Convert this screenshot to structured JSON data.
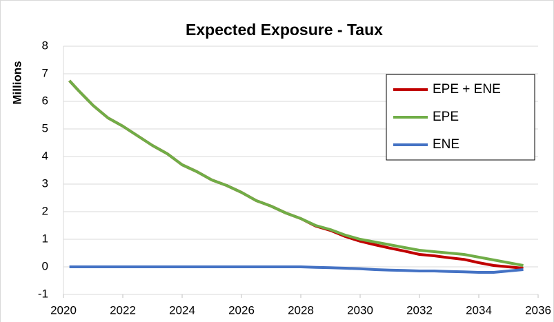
{
  "chart_data": {
    "type": "line",
    "title": "Expected Exposure - Taux",
    "y_label": "Millions",
    "x": [
      2020.2,
      2020.5,
      2021,
      2021.5,
      2022,
      2022.5,
      2023,
      2023.5,
      2024,
      2024.5,
      2025,
      2025.5,
      2026,
      2026.5,
      2027,
      2027.5,
      2028,
      2028.5,
      2029,
      2029.5,
      2030,
      2030.5,
      2031,
      2031.5,
      2032,
      2032.5,
      2033,
      2033.5,
      2034,
      2034.5,
      2035,
      2035.5
    ],
    "series": [
      {
        "name": "EPE + ENE",
        "color": "#c00000",
        "values": [
          6.75,
          6.4,
          5.85,
          5.4,
          5.1,
          4.75,
          4.4,
          4.1,
          3.7,
          3.45,
          3.15,
          2.95,
          2.7,
          2.4,
          2.2,
          1.95,
          1.75,
          1.48,
          1.32,
          1.1,
          0.93,
          0.8,
          0.68,
          0.57,
          0.45,
          0.4,
          0.33,
          0.27,
          0.15,
          0.05,
          0.0,
          -0.05
        ]
      },
      {
        "name": "EPE",
        "color": "#70ad47",
        "values": [
          6.75,
          6.4,
          5.85,
          5.4,
          5.1,
          4.75,
          4.4,
          4.1,
          3.7,
          3.45,
          3.15,
          2.95,
          2.7,
          2.4,
          2.2,
          1.95,
          1.75,
          1.5,
          1.35,
          1.15,
          1.0,
          0.9,
          0.8,
          0.7,
          0.6,
          0.55,
          0.5,
          0.45,
          0.35,
          0.25,
          0.15,
          0.05
        ]
      },
      {
        "name": "ENE",
        "color": "#4472c4",
        "values": [
          0,
          0,
          0,
          0,
          0,
          0,
          0,
          0,
          0,
          0,
          0,
          0,
          0,
          0,
          0,
          0,
          0,
          -0.02,
          -0.03,
          -0.05,
          -0.07,
          -0.1,
          -0.12,
          -0.13,
          -0.15,
          -0.15,
          -0.17,
          -0.18,
          -0.2,
          -0.2,
          -0.15,
          -0.1
        ]
      }
    ],
    "xlim": [
      2020,
      2036
    ],
    "xticks": [
      2020,
      2022,
      2024,
      2026,
      2028,
      2030,
      2032,
      2034,
      2036
    ],
    "ylim": [
      -1,
      8
    ],
    "yticks": [
      -1,
      0,
      1,
      2,
      3,
      4,
      5,
      6,
      7,
      8
    ],
    "grid": true,
    "legend": "upper-right"
  }
}
